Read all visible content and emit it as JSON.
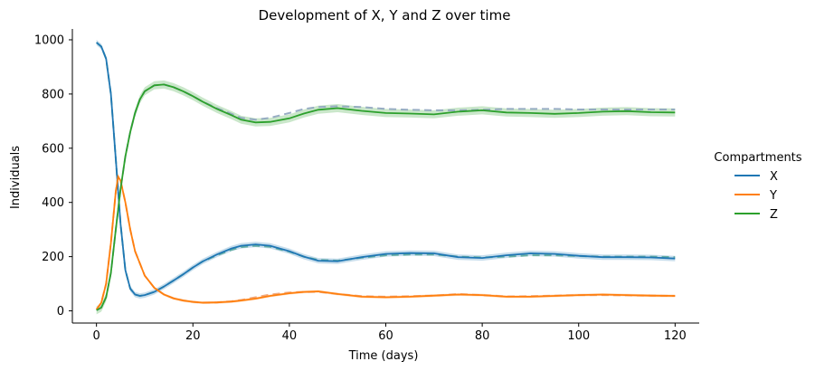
{
  "chart_data": {
    "type": "line",
    "title": "Development of X, Y and Z over time",
    "xlabel": "Time (days)",
    "ylabel": "Individuals",
    "xlim": [
      -5,
      125
    ],
    "ylim": [
      -45,
      1040
    ],
    "xticks": [
      0,
      20,
      40,
      60,
      80,
      100,
      120
    ],
    "yticks": [
      0,
      200,
      400,
      600,
      800,
      1000
    ],
    "grid": false,
    "legend": {
      "title": "Compartments",
      "placement": "right"
    },
    "series": [
      {
        "name": "X",
        "color": "#1f77b4",
        "band_color": "#1f77b4",
        "ref_color": "#5aa89a",
        "x": [
          0,
          1,
          2,
          3,
          4,
          5,
          6,
          7,
          8,
          9,
          10,
          12,
          14,
          16,
          18,
          20,
          22,
          25,
          28,
          30,
          33,
          36,
          40,
          43,
          46,
          50,
          55,
          60,
          65,
          70,
          75,
          80,
          85,
          90,
          95,
          100,
          105,
          110,
          115,
          120
        ],
        "values": [
          990,
          975,
          930,
          800,
          560,
          320,
          150,
          82,
          60,
          55,
          58,
          70,
          90,
          112,
          135,
          160,
          182,
          208,
          230,
          240,
          245,
          240,
          220,
          200,
          185,
          183,
          198,
          210,
          213,
          212,
          198,
          195,
          205,
          212,
          210,
          203,
          198,
          198,
          197,
          193
        ],
        "ref": [
          990,
          975,
          930,
          800,
          560,
          320,
          150,
          82,
          60,
          55,
          58,
          70,
          90,
          112,
          135,
          160,
          182,
          205,
          225,
          235,
          240,
          236,
          218,
          200,
          188,
          185,
          196,
          205,
          208,
          208,
          200,
          197,
          200,
          205,
          205,
          202,
          200,
          200,
          200,
          198
        ],
        "band": 10
      },
      {
        "name": "Y",
        "color": "#ff7f0e",
        "band_color": "#ff7f0e",
        "ref_color": "#f0a070",
        "x": [
          0,
          1,
          2,
          3,
          4,
          4.5,
          5,
          6,
          7,
          8,
          10,
          12,
          14,
          16,
          18,
          20,
          22,
          25,
          28,
          30,
          33,
          36,
          40,
          43,
          46,
          50,
          55,
          60,
          65,
          70,
          75,
          80,
          85,
          90,
          95,
          100,
          105,
          110,
          115,
          120
        ],
        "values": [
          5,
          30,
          100,
          250,
          440,
          495,
          480,
          400,
          300,
          220,
          130,
          85,
          60,
          46,
          38,
          33,
          30,
          31,
          34,
          38,
          45,
          55,
          65,
          70,
          72,
          62,
          52,
          50,
          52,
          56,
          60,
          58,
          52,
          52,
          55,
          58,
          60,
          58,
          56,
          55
        ],
        "ref": [
          5,
          30,
          100,
          250,
          440,
          495,
          480,
          400,
          300,
          220,
          130,
          85,
          60,
          46,
          38,
          33,
          30,
          31,
          35,
          40,
          50,
          60,
          68,
          70,
          70,
          62,
          54,
          52,
          54,
          56,
          62,
          58,
          53,
          54,
          56,
          58,
          58,
          57,
          56,
          55
        ],
        "band": 5
      },
      {
        "name": "Z",
        "color": "#2ca02c",
        "band_color": "#2ca02c",
        "ref_color": "#8ea4bf",
        "x": [
          0,
          1,
          2,
          3,
          4,
          5,
          6,
          7,
          8,
          9,
          10,
          12,
          14,
          16,
          18,
          20,
          22,
          25,
          28,
          30,
          33,
          36,
          40,
          43,
          46,
          50,
          55,
          60,
          65,
          70,
          75,
          80,
          85,
          90,
          95,
          100,
          105,
          110,
          115,
          120
        ],
        "values": [
          2,
          12,
          50,
          140,
          300,
          450,
          570,
          660,
          730,
          780,
          810,
          832,
          835,
          825,
          810,
          792,
          772,
          745,
          722,
          705,
          695,
          697,
          710,
          728,
          742,
          748,
          738,
          730,
          728,
          725,
          735,
          740,
          732,
          730,
          727,
          730,
          735,
          737,
          733,
          732
        ],
        "ref": [
          2,
          12,
          50,
          140,
          300,
          450,
          570,
          660,
          730,
          780,
          810,
          832,
          835,
          825,
          810,
          792,
          772,
          748,
          727,
          712,
          705,
          712,
          730,
          745,
          752,
          755,
          752,
          745,
          742,
          740,
          740,
          742,
          745,
          745,
          745,
          743,
          743,
          743,
          743,
          743
        ],
        "band": 15
      }
    ]
  }
}
